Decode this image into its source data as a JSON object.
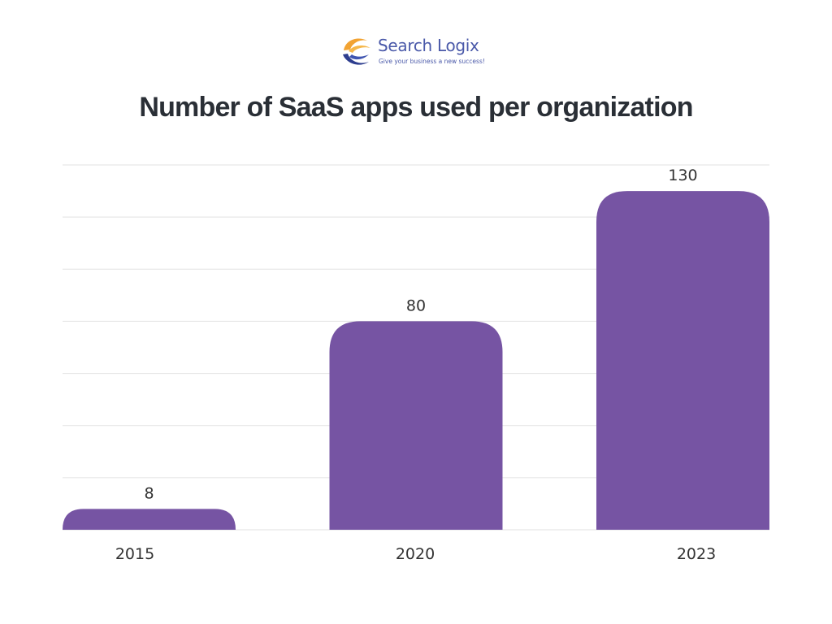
{
  "brand": {
    "name": "Search Logix",
    "tagline": "Give your business a new success!",
    "colors": {
      "text": "#4a59a9",
      "orange": "#f2a332",
      "navy": "#2e3e8f"
    }
  },
  "chart_data": {
    "type": "bar",
    "title": "Number of SaaS apps used per organization",
    "categories": [
      "2015",
      "2020",
      "2023"
    ],
    "values": [
      8,
      80,
      130
    ],
    "data_labels": [
      "8",
      "80",
      "130"
    ],
    "xlabel": "",
    "ylabel": "",
    "ylim": [
      0,
      140
    ],
    "grid": true,
    "legend": "none",
    "colors": {
      "bar": "#7654a3",
      "grid": "#e2e2e2",
      "label": "#333333",
      "title": "#2a2f36"
    }
  }
}
